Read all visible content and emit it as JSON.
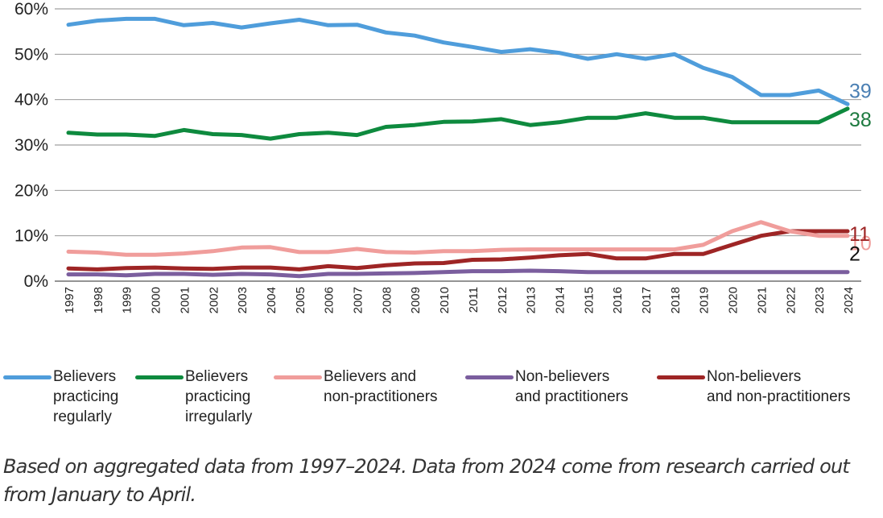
{
  "chart_data": {
    "type": "line",
    "x": [
      "1997",
      "1998",
      "1999",
      "2000",
      "2001",
      "2002",
      "2003",
      "2004",
      "2005",
      "2006",
      "2007",
      "2008",
      "2009",
      "2010",
      "2011",
      "2012",
      "2013",
      "2014",
      "2015",
      "2016",
      "2017",
      "2018",
      "2019",
      "2020",
      "2021",
      "2022",
      "2023",
      "2024"
    ],
    "ylim": [
      0,
      60
    ],
    "yticks": [
      "0%",
      "10%",
      "20%",
      "30%",
      "40%",
      "50%",
      "60%"
    ],
    "grid": true,
    "legend_position": "bottom",
    "series": [
      {
        "name": "Believers practicing regularly",
        "color": "#4f9ddb",
        "values": [
          56.5,
          57.4,
          57.8,
          57.8,
          56.4,
          56.9,
          55.9,
          56.8,
          57.6,
          56.4,
          56.5,
          54.8,
          54.1,
          52.6,
          51.6,
          50.5,
          51.1,
          50.3,
          49.0,
          50.0,
          49.0,
          50.0,
          47.0,
          45.0,
          41.0,
          41.0,
          42.0,
          39.0
        ],
        "end_label": "39",
        "end_label_color": "#4a7fb3"
      },
      {
        "name": "Believers practicing irregularly",
        "color": "#0e8a3e",
        "values": [
          32.7,
          32.3,
          32.3,
          32.0,
          33.3,
          32.4,
          32.2,
          31.4,
          32.4,
          32.7,
          32.2,
          34.0,
          34.4,
          35.1,
          35.2,
          35.7,
          34.4,
          35.0,
          36.0,
          36.0,
          37.0,
          36.0,
          36.0,
          35.0,
          35.0,
          35.0,
          35.0,
          38.0
        ],
        "end_label": "38",
        "end_label_color": "#1e7a40"
      },
      {
        "name": "Believers and\nnon-practitioners",
        "color": "#f09d9b",
        "values": [
          6.5,
          6.3,
          5.8,
          5.8,
          6.1,
          6.6,
          7.4,
          7.5,
          6.4,
          6.4,
          7.1,
          6.4,
          6.3,
          6.6,
          6.6,
          6.9,
          7.0,
          7.0,
          7.0,
          7.0,
          7.0,
          7.0,
          8.0,
          11.0,
          13.0,
          11.0,
          10.0,
          10.0
        ],
        "end_label": "10",
        "end_label_color": "#f09d9b"
      },
      {
        "name": "Non-believers\nand practitioners",
        "color": "#7b5e9e",
        "values": [
          1.5,
          1.5,
          1.3,
          1.6,
          1.6,
          1.4,
          1.6,
          1.5,
          1.1,
          1.6,
          1.6,
          1.7,
          1.8,
          2.0,
          2.2,
          2.2,
          2.3,
          2.2,
          2.0,
          2.0,
          2.0,
          2.0,
          2.0,
          2.0,
          2.0,
          2.0,
          2.0,
          2.0
        ],
        "end_label": "2",
        "end_label_color": "#111111"
      },
      {
        "name": "Non-believers\nand non-practitioners",
        "color": "#9e2525",
        "values": [
          2.8,
          2.6,
          2.9,
          3.0,
          2.8,
          2.7,
          3.0,
          3.0,
          2.6,
          3.3,
          2.9,
          3.5,
          3.9,
          4.0,
          4.7,
          4.8,
          5.2,
          5.7,
          6.0,
          5.0,
          5.0,
          6.0,
          6.0,
          8.0,
          10.0,
          11.0,
          11.0,
          11.0
        ],
        "end_label": "11",
        "end_label_color": "#9e2525"
      }
    ],
    "legend": [
      {
        "label": "Believers\npracticing\nregularly",
        "color": "#4f9ddb"
      },
      {
        "label": "Believers\npracticing\nirregularly",
        "color": "#0e8a3e"
      },
      {
        "label": "Believers and\nnon-practitioners",
        "color": "#f09d9b"
      },
      {
        "label": "Non-believers\nand practitioners",
        "color": "#7b5e9e"
      },
      {
        "label": "Non-believers\nand non-practitioners",
        "color": "#9e2525"
      }
    ]
  },
  "note": "Based on aggregated data from 1997–2024. Data from 2024 come from research carried out from January to April."
}
